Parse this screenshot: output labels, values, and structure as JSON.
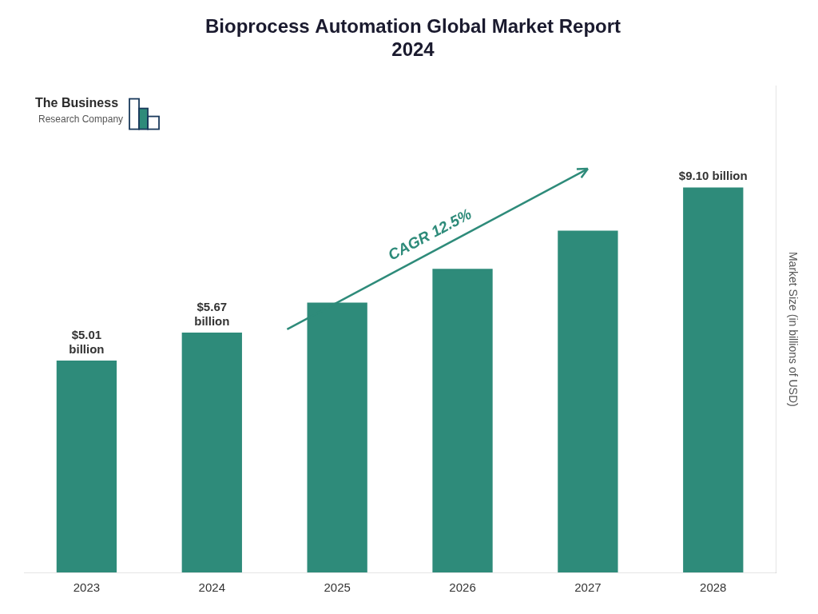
{
  "chart_data": {
    "type": "bar",
    "title": "Bioprocess Automation Global Market Report\n2024",
    "categories": [
      "2023",
      "2024",
      "2025",
      "2026",
      "2027",
      "2028"
    ],
    "values": [
      5.01,
      5.67,
      6.38,
      7.18,
      8.08,
      9.1
    ],
    "value_labels": [
      "$5.01\nbillion",
      "$5.67\nbillion",
      null,
      null,
      null,
      "$9.10 billion"
    ],
    "data_labels": true,
    "color": "#2E8B7A",
    "ylabel": "Market Size (in billions of USD)",
    "ylim": [
      0,
      11.5
    ],
    "grid": false,
    "tick_labels": "x",
    "annotations": [
      "CAGR 12.5%",
      "The Business",
      "Research Company"
    ]
  }
}
